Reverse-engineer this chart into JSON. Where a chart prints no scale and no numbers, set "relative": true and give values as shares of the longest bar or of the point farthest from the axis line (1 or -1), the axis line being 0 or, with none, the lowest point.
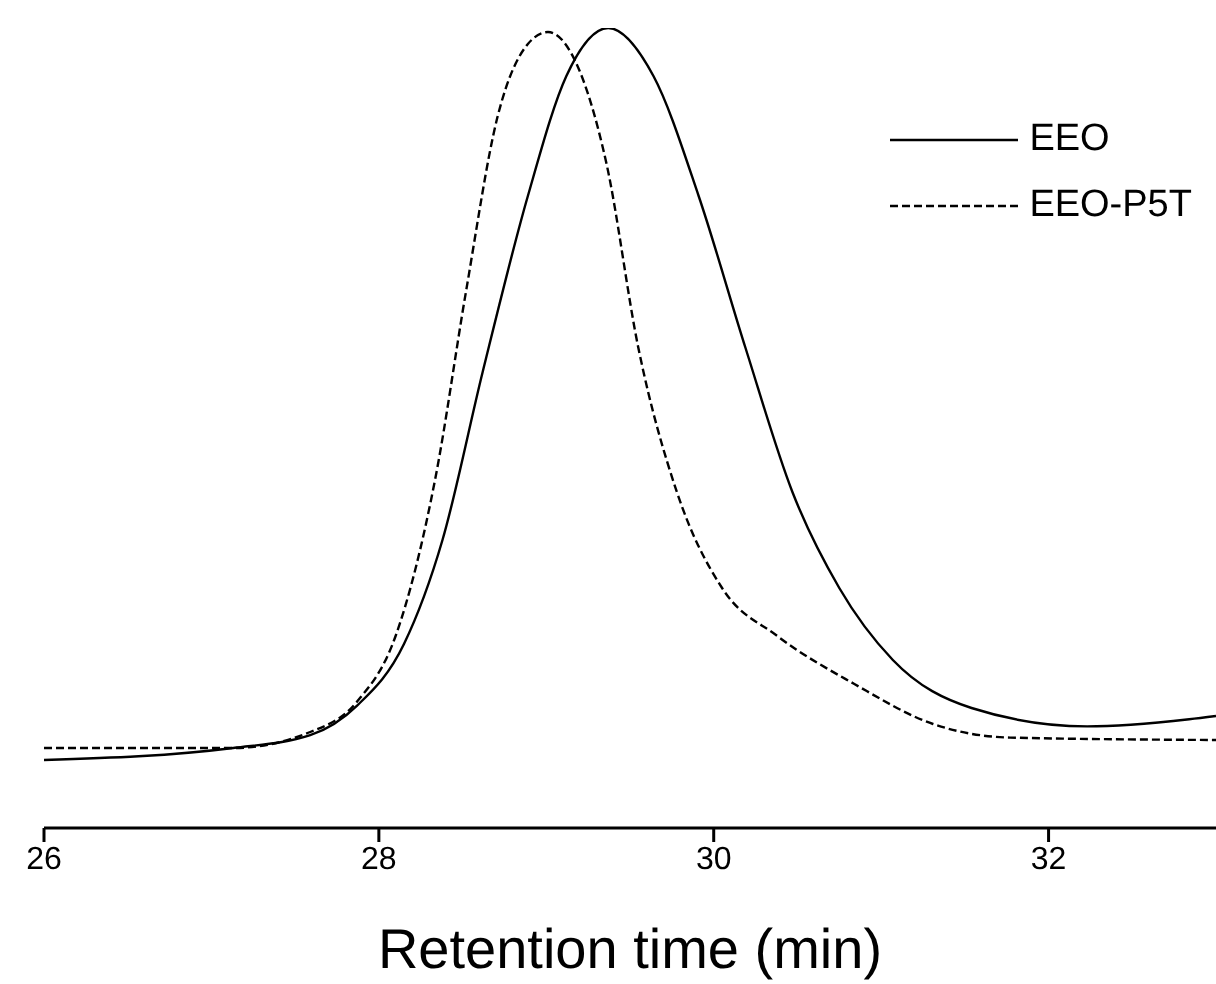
{
  "chart_data": {
    "type": "line",
    "xlabel": "Retention time (min)",
    "relative": true,
    "xlim": [
      26,
      33
    ],
    "xticks": [
      26,
      28,
      30,
      32
    ],
    "legend": "top right",
    "grid": false,
    "marker": "none",
    "series": [
      {
        "name": "EEO",
        "color": "#000000",
        "line_style": "solid",
        "x": [
          26,
          27.13,
          27.59,
          27.87,
          28.15,
          28.38,
          28.62,
          28.89,
          29.12,
          29.37,
          29.64,
          29.91,
          30.19,
          30.47,
          30.75,
          31.07,
          31.54,
          32.23,
          32.84,
          33
        ],
        "values": [
          0.085,
          0.1,
          0.116,
          0.153,
          0.23,
          0.36,
          0.57,
          0.79,
          0.94,
          1,
          0.94,
          0.79,
          0.6,
          0.42,
          0.3,
          0.21,
          0.15,
          0.127,
          0.136,
          0.14
        ]
      },
      {
        "name": "EEO-P5T",
        "color": "#000000",
        "line_style": "dashed",
        "x": [
          26,
          27.13,
          27.59,
          27.87,
          28.1,
          28.34,
          28.52,
          28.71,
          28.89,
          29.01,
          29.17,
          29.36,
          29.55,
          29.78,
          30.05,
          30.38,
          30.84,
          31.31,
          31.77,
          33
        ],
        "values": [
          0.1,
          0.1,
          0.12,
          0.158,
          0.24,
          0.44,
          0.67,
          0.89,
          0.98,
          0.995,
          0.96,
          0.83,
          0.6,
          0.42,
          0.3,
          0.24,
          0.18,
          0.13,
          0.113,
          0.11
        ]
      }
    ]
  }
}
